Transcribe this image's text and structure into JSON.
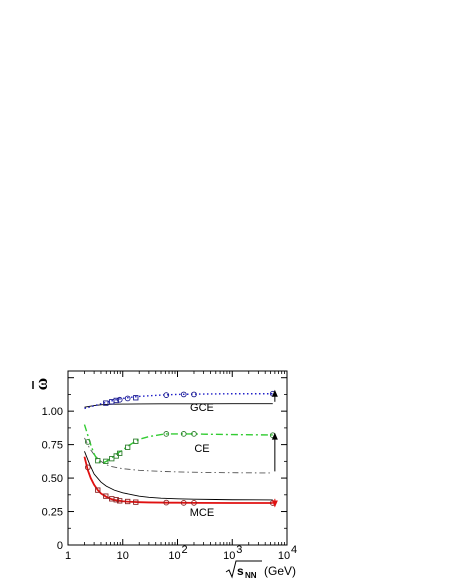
{
  "chart_data": {
    "type": "line",
    "xlabel_radicand": "s",
    "xlabel_subscript": "NN",
    "xlabel_unit": "(GeV)",
    "ylabel": "ω",
    "x_scale": "log",
    "xlim": [
      1,
      10000
    ],
    "ylim": [
      0,
      1.3
    ],
    "x_ticks": [
      {
        "value": 1,
        "label": "1",
        "exp": ""
      },
      {
        "value": 10,
        "label": "10",
        "exp": ""
      },
      {
        "value": 100,
        "label": "10",
        "exp": "2"
      },
      {
        "value": 1000,
        "label": "10",
        "exp": "3"
      },
      {
        "value": 10000,
        "label": "10",
        "exp": "4"
      }
    ],
    "y_ticks": [
      {
        "value": 0,
        "label": "0"
      },
      {
        "value": 0.25,
        "label": "0.25"
      },
      {
        "value": 0.5,
        "label": "0.50"
      },
      {
        "value": 0.75,
        "label": "0.75"
      },
      {
        "value": 1.0,
        "label": "1.00"
      }
    ],
    "grid": false,
    "legend": "none",
    "series": [
      {
        "label": "GCE",
        "color": "#1f1fc8",
        "dash": "1.5,2.5",
        "marker_color": "#1a1a8c",
        "x": [
          2,
          3,
          4,
          5,
          6,
          7,
          8,
          10,
          12,
          15,
          20,
          30,
          50,
          62,
          100,
          130,
          200,
          300,
          1000,
          2760,
          5500
        ],
        "y": [
          1.02,
          1.04,
          1.055,
          1.065,
          1.075,
          1.082,
          1.088,
          1.095,
          1.1,
          1.105,
          1.11,
          1.115,
          1.12,
          1.122,
          1.125,
          1.126,
          1.127,
          1.128,
          1.13,
          1.13,
          1.13
        ],
        "markers": [
          {
            "x": 4.9,
            "y": 1.06,
            "shape": "square"
          },
          {
            "x": 6.3,
            "y": 1.07,
            "shape": "square"
          },
          {
            "x": 7.6,
            "y": 1.08,
            "shape": "square"
          },
          {
            "x": 8.8,
            "y": 1.085,
            "shape": "circle"
          },
          {
            "x": 12.3,
            "y": 1.095,
            "shape": "circle"
          },
          {
            "x": 17.3,
            "y": 1.1,
            "shape": "square"
          },
          {
            "x": 62.4,
            "y": 1.12,
            "shape": "circle"
          },
          {
            "x": 130,
            "y": 1.125,
            "shape": "circle"
          },
          {
            "x": 200,
            "y": 1.125,
            "shape": "circle"
          },
          {
            "x": 5500,
            "y": 1.13,
            "shape": "circle"
          }
        ]
      },
      {
        "label": "CE",
        "color": "#33cc33",
        "dash": "7,3,2,3",
        "marker_color": "#2f7d2f",
        "x": [
          2,
          2.3,
          2.6,
          3,
          3.5,
          4,
          4.5,
          5,
          6,
          7,
          8,
          10,
          12,
          15,
          17.3,
          20,
          30,
          50,
          62.4,
          100,
          200,
          300,
          1000,
          5500
        ],
        "y": [
          0.9,
          0.82,
          0.75,
          0.68,
          0.63,
          0.615,
          0.615,
          0.625,
          0.645,
          0.665,
          0.685,
          0.71,
          0.735,
          0.76,
          0.775,
          0.79,
          0.81,
          0.825,
          0.83,
          0.83,
          0.83,
          0.828,
          0.825,
          0.822
        ],
        "markers": [
          {
            "x": 2.3,
            "y": 0.77,
            "shape": "circle"
          },
          {
            "x": 3.5,
            "y": 0.63,
            "shape": "square"
          },
          {
            "x": 4.9,
            "y": 0.625,
            "shape": "square"
          },
          {
            "x": 6.3,
            "y": 0.645,
            "shape": "square"
          },
          {
            "x": 7.6,
            "y": 0.665,
            "shape": "square"
          },
          {
            "x": 8.8,
            "y": 0.685,
            "shape": "square"
          },
          {
            "x": 12.3,
            "y": 0.73,
            "shape": "square"
          },
          {
            "x": 17.3,
            "y": 0.775,
            "shape": "square"
          },
          {
            "x": 62.4,
            "y": 0.83,
            "shape": "circle"
          },
          {
            "x": 130,
            "y": 0.83,
            "shape": "circle"
          },
          {
            "x": 200,
            "y": 0.83,
            "shape": "circle"
          },
          {
            "x": 5500,
            "y": 0.82,
            "shape": "circle"
          }
        ]
      },
      {
        "label": "MCE",
        "color": "#e01010",
        "dash": "",
        "marker_color": "#8a2020",
        "x": [
          2,
          2.3,
          2.6,
          3,
          3.5,
          4,
          5,
          6,
          7,
          8,
          10,
          12,
          15,
          20,
          30,
          50,
          62.4,
          100,
          200,
          1000,
          5500
        ],
        "y": [
          0.66,
          0.56,
          0.5,
          0.45,
          0.41,
          0.385,
          0.36,
          0.345,
          0.337,
          0.332,
          0.327,
          0.324,
          0.322,
          0.32,
          0.318,
          0.317,
          0.316,
          0.316,
          0.315,
          0.314,
          0.314
        ],
        "markers": [
          {
            "x": 2.3,
            "y": 0.58,
            "shape": "circle"
          },
          {
            "x": 3.5,
            "y": 0.41,
            "shape": "square"
          },
          {
            "x": 4.9,
            "y": 0.365,
            "shape": "square"
          },
          {
            "x": 6.3,
            "y": 0.345,
            "shape": "square"
          },
          {
            "x": 7.6,
            "y": 0.338,
            "shape": "square"
          },
          {
            "x": 8.8,
            "y": 0.33,
            "shape": "square"
          },
          {
            "x": 12.3,
            "y": 0.325,
            "shape": "square"
          },
          {
            "x": 17.3,
            "y": 0.32,
            "shape": "square"
          },
          {
            "x": 62.4,
            "y": 0.317,
            "shape": "circle"
          },
          {
            "x": 130,
            "y": 0.315,
            "shape": "circle"
          },
          {
            "x": 200,
            "y": 0.315,
            "shape": "circle"
          },
          {
            "x": 5500,
            "y": 0.314,
            "shape": "circle"
          }
        ]
      }
    ],
    "reference_curves": [
      {
        "color": "#000000",
        "dash": "",
        "x": [
          2,
          3,
          4,
          5,
          7,
          10,
          20,
          50,
          100,
          300,
          1000,
          5500
        ],
        "y": [
          1.03,
          1.042,
          1.047,
          1.05,
          1.052,
          1.053,
          1.054,
          1.055,
          1.055,
          1.055,
          1.056,
          1.056
        ]
      },
      {
        "color": "#555555",
        "dash": "6,3,1.5,3",
        "x": [
          2,
          2.5,
          3,
          4,
          5,
          6,
          8,
          10,
          15,
          20,
          50,
          100,
          300,
          1000,
          5500
        ],
        "y": [
          0.8,
          0.72,
          0.675,
          0.625,
          0.6,
          0.588,
          0.577,
          0.57,
          0.563,
          0.558,
          0.55,
          0.546,
          0.542,
          0.54,
          0.538
        ]
      },
      {
        "color": "#000000",
        "dash": "",
        "x": [
          2,
          2.5,
          3,
          4,
          5,
          7,
          10,
          15,
          20,
          30,
          50,
          100,
          200,
          500,
          1000,
          5500
        ],
        "y": [
          0.7,
          0.6,
          0.53,
          0.47,
          0.44,
          0.41,
          0.39,
          0.375,
          0.365,
          0.356,
          0.35,
          0.345,
          0.342,
          0.34,
          0.338,
          0.337
        ]
      }
    ],
    "arrows": [
      {
        "x": 6000,
        "y_from": 1.07,
        "y_to": 1.16,
        "color": "#000000"
      },
      {
        "x": 6000,
        "y_from": 0.55,
        "y_to": 0.84,
        "color": "#000000"
      },
      {
        "x": 6000,
        "y_from": 0.345,
        "y_to": 0.28,
        "color": "#e01010"
      }
    ]
  }
}
